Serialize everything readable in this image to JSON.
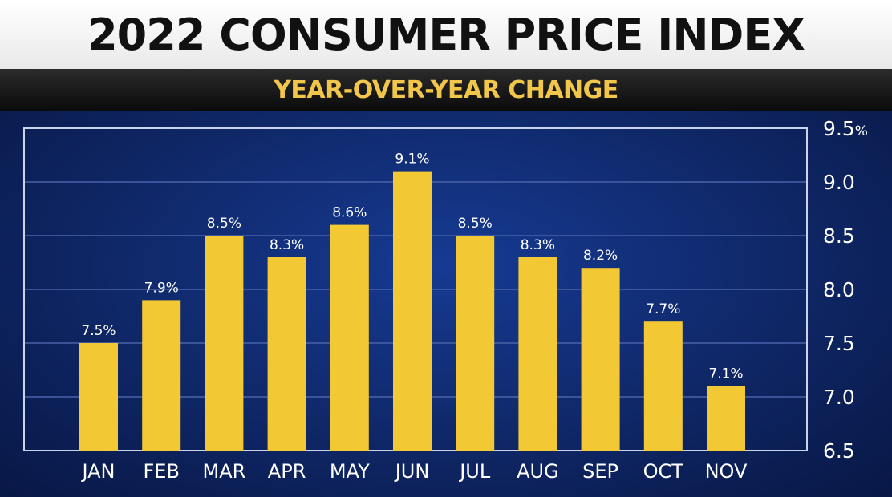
{
  "chart_data": {
    "type": "bar",
    "title": "2022 CONSUMER PRICE INDEX",
    "subtitle": "YEAR-OVER-YEAR CHANGE",
    "categories": [
      "JAN",
      "FEB",
      "MAR",
      "APR",
      "MAY",
      "JUN",
      "JUL",
      "AUG",
      "SEP",
      "OCT",
      "NOV"
    ],
    "values": [
      7.5,
      7.9,
      8.5,
      8.3,
      8.6,
      9.1,
      8.5,
      8.3,
      8.2,
      7.7,
      7.1
    ],
    "value_labels": [
      "7.5%",
      "7.9%",
      "8.5%",
      "8.3%",
      "8.6%",
      "9.1%",
      "8.5%",
      "8.3%",
      "8.2%",
      "7.7%",
      "7.1%"
    ],
    "ylim": [
      6.5,
      9.5
    ],
    "y_ticks": [
      {
        "value": 9.5,
        "label": "9.5",
        "unit": "%"
      },
      {
        "value": 9.0,
        "label": "9.0",
        "unit": ""
      },
      {
        "value": 8.5,
        "label": "8.5",
        "unit": ""
      },
      {
        "value": 8.0,
        "label": "8.0",
        "unit": ""
      },
      {
        "value": 7.5,
        "label": "7.5",
        "unit": ""
      },
      {
        "value": 7.0,
        "label": "7.0",
        "unit": ""
      },
      {
        "value": 6.5,
        "label": "6.5",
        "unit": ""
      }
    ],
    "y_axis_side": "right",
    "grid": true,
    "colors": {
      "bar": "#f2c935",
      "grid": "#4a62a8",
      "frame": "#c9d3ea",
      "title_text": "#111111",
      "subtitle_text": "#f2c64a"
    }
  }
}
